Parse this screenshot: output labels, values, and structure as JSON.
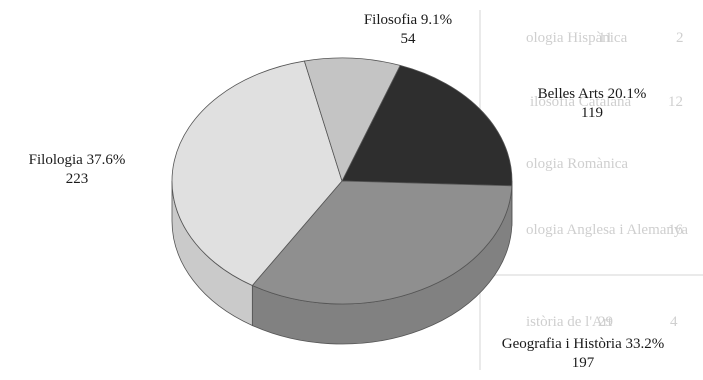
{
  "background_table": {
    "rows": [
      "ologia Hispànica",
      "ilosofia Catalana",
      "ologia Romànica",
      "ologia Anglesa i Alemanya",
      "istòria de l'Art"
    ],
    "numbers": [
      "2",
      "12",
      "16",
      "11",
      "29",
      "4"
    ]
  },
  "chart_data": {
    "type": "pie",
    "style": "3d",
    "categories": [
      "Belles Arts",
      "Geografia i Història",
      "Filologia",
      "Filosofia"
    ],
    "values": [
      119,
      197,
      223,
      54
    ],
    "percentages": [
      "20.1%",
      "33.2%",
      "37.6%",
      "9.1%"
    ],
    "colors": [
      "#2e2e2e",
      "#8f8f8f",
      "#e0e0e0",
      "#c4c4c4"
    ],
    "title": ""
  }
}
